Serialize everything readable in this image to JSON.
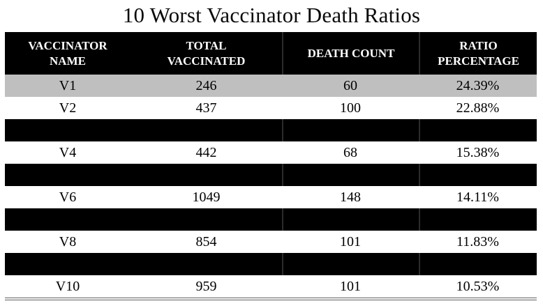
{
  "title": "10 Worst Vaccinator Death Ratios",
  "colors": {
    "header_bg": "#000000",
    "header_text": "#ffffff",
    "redacted_row_bg": "#000000",
    "highlight_row_bg": "#bfbfbf",
    "body_text": "#000000",
    "bottom_border": "#5f5f5f"
  },
  "chart_data": {
    "type": "table",
    "title": "10 Worst Vaccinator Death Ratios",
    "columns": [
      "VACCINATOR NAME",
      "TOTAL VACCINATED",
      "DEATH COUNT",
      "RATIO PERCENTAGE"
    ],
    "column_labels": [
      "VACCINATOR\nNAME",
      "TOTAL\nVACCINATED",
      "DEATH COUNT",
      "RATIO\nPERCENTAGE"
    ],
    "rows": [
      {
        "cells": [
          "V1",
          "246",
          "60",
          "24.39%"
        ],
        "redacted": false,
        "highlight": true
      },
      {
        "cells": [
          "V2",
          "437",
          "100",
          "22.88%"
        ],
        "redacted": false,
        "highlight": false
      },
      {
        "cells": [
          "",
          "",
          "",
          ""
        ],
        "redacted": true,
        "highlight": false
      },
      {
        "cells": [
          "V4",
          "442",
          "68",
          "15.38%"
        ],
        "redacted": false,
        "highlight": false
      },
      {
        "cells": [
          "",
          "",
          "",
          ""
        ],
        "redacted": true,
        "highlight": false
      },
      {
        "cells": [
          "V6",
          "1049",
          "148",
          "14.11%"
        ],
        "redacted": false,
        "highlight": false
      },
      {
        "cells": [
          "",
          "",
          "",
          ""
        ],
        "redacted": true,
        "highlight": false
      },
      {
        "cells": [
          "V8",
          "854",
          "101",
          "11.83%"
        ],
        "redacted": false,
        "highlight": false
      },
      {
        "cells": [
          "",
          "",
          "",
          ""
        ],
        "redacted": true,
        "highlight": false
      },
      {
        "cells": [
          "V10",
          "959",
          "101",
          "10.53%"
        ],
        "redacted": false,
        "highlight": false
      }
    ]
  }
}
